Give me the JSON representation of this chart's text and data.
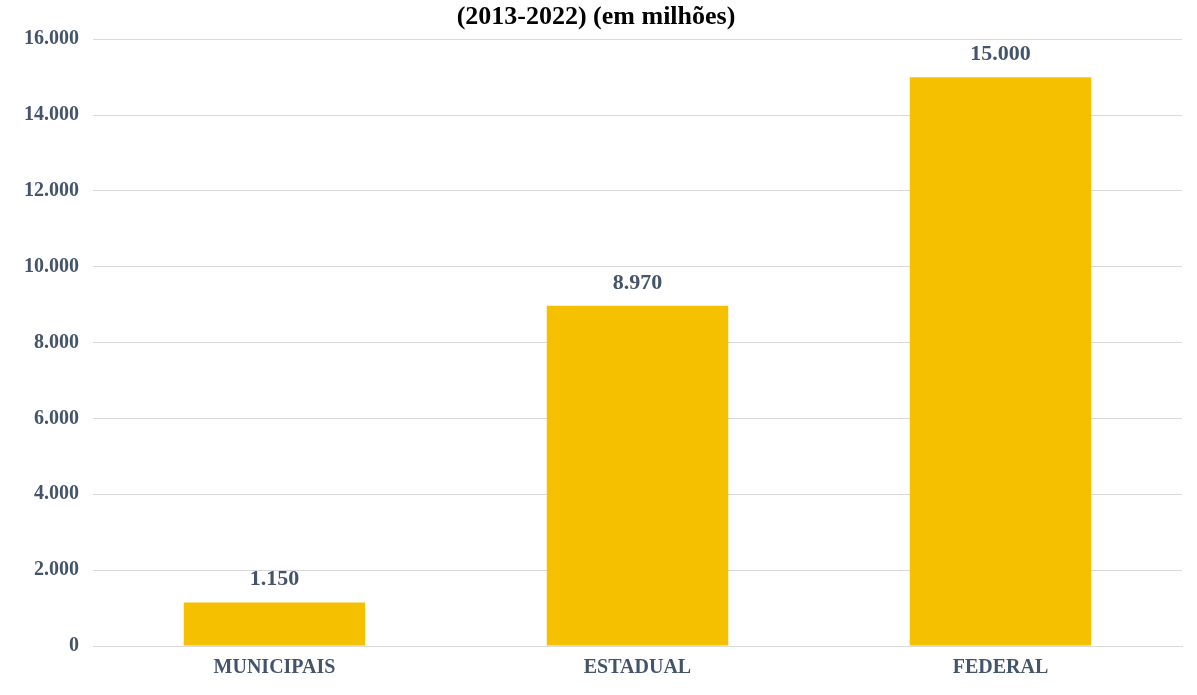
{
  "chart_data": {
    "type": "bar",
    "title": "(2013-2022) (em milhões)",
    "categories": [
      "MUNICIPAIS",
      "ESTADUAL",
      "FEDERAL"
    ],
    "values": [
      1150,
      8970,
      15000
    ],
    "value_labels": [
      "1.150",
      "8.970",
      "15.000"
    ],
    "color": "#f5c000",
    "ylim": [
      0,
      16000
    ],
    "yticks": [
      {
        "value": 0,
        "label": "0"
      },
      {
        "value": 2000,
        "label": "2.000"
      },
      {
        "value": 4000,
        "label": "4.000"
      },
      {
        "value": 6000,
        "label": "6.000"
      },
      {
        "value": 8000,
        "label": "8.000"
      },
      {
        "value": 10000,
        "label": "10.000"
      },
      {
        "value": 12000,
        "label": "12.000"
      },
      {
        "value": 14000,
        "label": "14.000"
      },
      {
        "value": 16000,
        "label": "16.000"
      }
    ],
    "grid": "y",
    "legend": false
  }
}
